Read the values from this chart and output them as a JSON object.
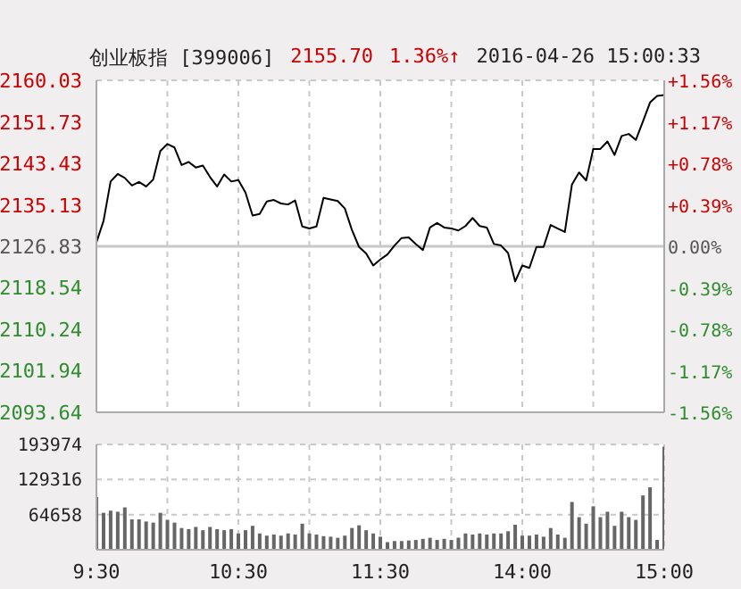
{
  "chart_data": [
    {
      "type": "line",
      "title": "创业板指 [399006]",
      "annotations": [
        "2155.70",
        "1.36%↑",
        "2016-04-26 15:00:33"
      ],
      "categories": [
        null,
        null,
        null,
        null,
        null,
        null,
        null,
        null,
        null,
        null,
        null,
        null,
        null,
        null,
        null,
        null,
        null,
        null,
        null,
        null,
        null,
        null,
        null,
        null,
        null,
        null,
        null,
        null,
        null,
        null,
        null,
        null,
        null,
        null,
        null,
        null,
        null,
        null,
        null,
        null,
        null,
        null,
        null,
        null,
        null,
        null,
        null,
        null,
        null,
        null,
        null,
        null,
        null,
        null,
        null,
        null,
        null,
        null,
        null,
        null,
        null,
        null,
        null,
        null,
        null,
        null,
        null,
        null,
        null,
        null,
        null,
        null,
        null,
        null,
        null,
        null,
        null,
        null,
        null,
        null,
        null
      ],
      "series": [
        {
          "color": "#000000",
          "values": [
            2127.6,
            2131.9,
            2139.8,
            2141.3,
            2140.5,
            2139.0,
            2139.7,
            2138.8,
            2140.2,
            2145.9,
            2147.3,
            2146.6,
            2143.1,
            2143.7,
            2142.6,
            2143.0,
            2140.7,
            2138.8,
            2141.2,
            2139.8,
            2140.1,
            2137.6,
            2133.0,
            2133.3,
            2135.8,
            2136.1,
            2135.4,
            2135.2,
            2136.0,
            2130.8,
            2130.4,
            2130.8,
            2136.5,
            2136.2,
            2135.9,
            2134.4,
            2130.1,
            2126.7,
            2125.4,
            2123.0,
            2124.2,
            2125.2,
            2127.0,
            2128.5,
            2128.6,
            2127.3,
            2126.1,
            2130.6,
            2131.5,
            2130.6,
            2130.4,
            2130.0,
            2130.9,
            2132.5,
            2130.9,
            2130.6,
            2127.3,
            2127.0,
            2125.5,
            2119.8,
            2123.0,
            2122.5,
            2126.7,
            2126.7,
            2131.1,
            2130.4,
            2129.7,
            2139.2,
            2141.6,
            2140.0,
            2146.3,
            2146.3,
            2147.8,
            2145.1,
            2148.9,
            2149.3,
            2148.1,
            2151.8,
            2155.6,
            2156.9,
            2157.1
          ]
        }
      ],
      "ylim": [
        2093.64,
        2160.03
      ],
      "yticks": [
        2093.64,
        2101.94,
        2110.24,
        2118.54,
        2126.83,
        2135.13,
        2143.43,
        2151.73,
        2160.03
      ],
      "y2lim": [
        -1.56,
        1.56
      ],
      "y2ticks": [
        {
          "value": -1.56,
          "label": "-1.56%"
        },
        {
          "value": -1.17,
          "label": "-1.17%"
        },
        {
          "value": -0.78,
          "label": "-0.78%"
        },
        {
          "value": -0.39,
          "label": "-0.39%"
        },
        {
          "value": 0,
          "label": "0.00%"
        },
        {
          "value": 0.39,
          "label": "+0.39%"
        },
        {
          "value": 0.78,
          "label": "+0.78%"
        },
        {
          "value": 1.17,
          "label": "+1.17%"
        },
        {
          "value": 1.56,
          "label": "+1.56%"
        }
      ],
      "ref_lines": [
        {
          "axis": "y",
          "value": 2126.83,
          "color": "#c8c8c8"
        }
      ],
      "grid": true,
      "marker": "none",
      "line_style": "solid"
    },
    {
      "type": "bar",
      "color": "#666666",
      "categories": [
        "9:30",
        null,
        null,
        null,
        null,
        null,
        null,
        null,
        null,
        null,
        null,
        null,
        null,
        null,
        null,
        null,
        null,
        null,
        null,
        null,
        "10:30",
        null,
        null,
        null,
        null,
        null,
        null,
        null,
        null,
        null,
        null,
        null,
        null,
        null,
        null,
        null,
        null,
        null,
        null,
        null,
        "11:30",
        null,
        null,
        null,
        null,
        null,
        null,
        null,
        null,
        null,
        null,
        null,
        null,
        null,
        null,
        null,
        null,
        null,
        null,
        null,
        "14:00",
        null,
        null,
        null,
        null,
        null,
        null,
        null,
        null,
        null,
        null,
        null,
        null,
        null,
        null,
        null,
        null,
        null,
        null,
        null,
        "15:00"
      ],
      "values": [
        97000,
        68000,
        72000,
        70000,
        78000,
        56000,
        56000,
        52000,
        50000,
        68000,
        55000,
        50000,
        40000,
        38000,
        42000,
        36000,
        42000,
        38000,
        36000,
        38000,
        30000,
        36000,
        44000,
        30000,
        26000,
        28000,
        26000,
        30000,
        28000,
        48000,
        30000,
        28000,
        25000,
        24000,
        22000,
        26000,
        40000,
        45000,
        36000,
        30000,
        24000,
        14000,
        16000,
        16000,
        17000,
        18000,
        20000,
        22000,
        18000,
        20000,
        18000,
        22000,
        30000,
        28000,
        30000,
        28000,
        30000,
        30000,
        34000,
        46000,
        26000,
        26000,
        28000,
        24000,
        40000,
        28000,
        22000,
        88000,
        60000,
        48000,
        80000,
        60000,
        70000,
        44000,
        70000,
        60000,
        55000,
        100000,
        115000,
        18000,
        190000
      ],
      "ylim": [
        0,
        193974
      ],
      "yticks": [
        64658,
        129316,
        193974
      ],
      "grid": true
    }
  ]
}
